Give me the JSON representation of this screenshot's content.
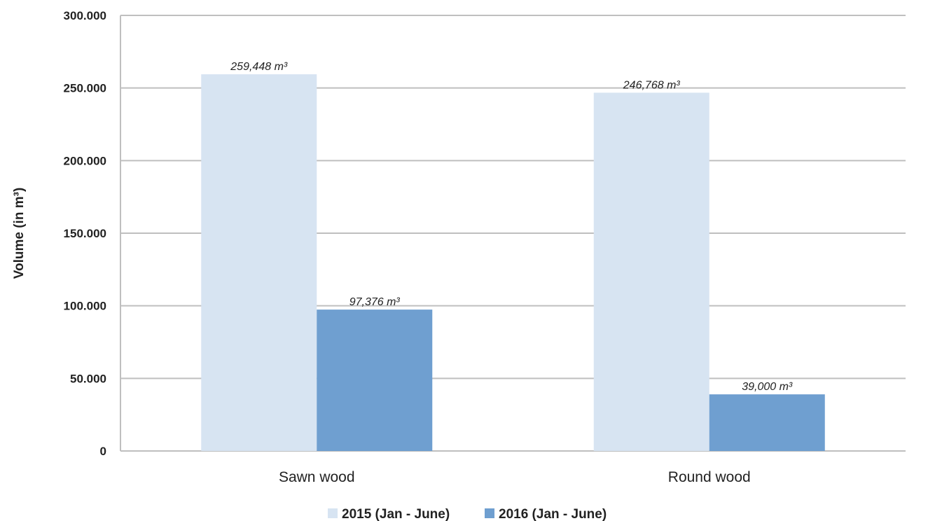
{
  "chart_data": {
    "type": "bar",
    "categories": [
      "Sawn wood",
      "Round wood"
    ],
    "series": [
      {
        "name": "2015 (Jan - June)",
        "values": [
          259448,
          246768
        ],
        "labels": [
          "259,448 m³",
          "246,768 m³"
        ],
        "color": "#d7e4f2"
      },
      {
        "name": "2016 (Jan - June)",
        "values": [
          97376,
          39000
        ],
        "labels": [
          "97,376 m³",
          "39,000 m³"
        ],
        "color": "#6f9fd0"
      }
    ],
    "title": "",
    "xlabel": "",
    "ylabel": "Volume (in m³)",
    "ylim": [
      0,
      300000
    ],
    "yticks": [
      0,
      50000,
      100000,
      150000,
      200000,
      250000,
      300000
    ],
    "ytick_labels": [
      "0",
      "50.000",
      "100.000",
      "150.000",
      "200.000",
      "250.000",
      "300.000"
    ],
    "grid": true,
    "gridline_color": "#bfbfbf",
    "legend_position": "bottom"
  }
}
